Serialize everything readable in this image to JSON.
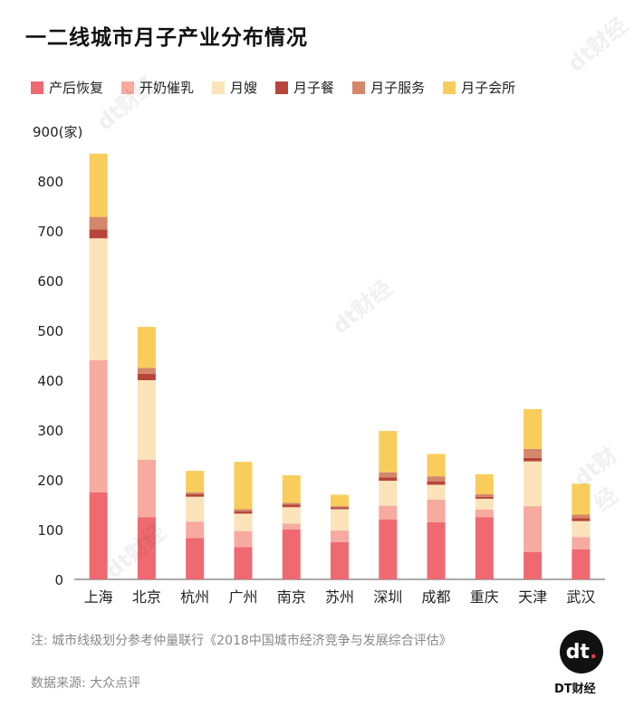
{
  "header": {
    "title": "一二线城市月子产业分布情况"
  },
  "footer": {
    "note": "注: 城市线级划分参考仲量联行《2018中国城市经济竞争与发展综合评估》",
    "source": "数据来源: 大众点评",
    "brand": "DT财经",
    "logo_text": "dt",
    "watermark": "dt财经"
  },
  "colors": {
    "产后恢复": "#ee6a70",
    "开奶催乳": "#f7aaa0",
    "月嫂": "#fbe3ba",
    "月子餐": "#b8453a",
    "月子服务": "#d4876a",
    "月子会所": "#f9cd5b"
  },
  "chart_data": {
    "type": "bar",
    "stacked": true,
    "title": "一二线城市月子产业分布情况",
    "ylabel": "900(家)",
    "xlabel": "",
    "ylim": [
      0,
      900
    ],
    "yticks": [
      0,
      100,
      200,
      300,
      400,
      500,
      600,
      700,
      800
    ],
    "categories": [
      "上海",
      "北京",
      "杭州",
      "广州",
      "南京",
      "苏州",
      "深圳",
      "成都",
      "重庆",
      "天津",
      "武汉"
    ],
    "series": [
      {
        "name": "产后恢复",
        "values": [
          175,
          125,
          83,
          65,
          100,
          75,
          120,
          115,
          125,
          55,
          60
        ]
      },
      {
        "name": "开奶催乳",
        "values": [
          265,
          115,
          33,
          32,
          12,
          23,
          28,
          45,
          15,
          92,
          25
        ]
      },
      {
        "name": "月嫂",
        "values": [
          245,
          160,
          50,
          35,
          33,
          43,
          50,
          30,
          22,
          90,
          32
        ]
      },
      {
        "name": "月子餐",
        "values": [
          18,
          13,
          5,
          5,
          5,
          4,
          7,
          7,
          4,
          7,
          6
        ]
      },
      {
        "name": "月子服务",
        "values": [
          25,
          12,
          4,
          4,
          4,
          2,
          10,
          10,
          5,
          18,
          7
        ]
      },
      {
        "name": "月子会所",
        "values": [
          127,
          82,
          43,
          95,
          55,
          23,
          83,
          45,
          40,
          80,
          62
        ]
      }
    ]
  }
}
